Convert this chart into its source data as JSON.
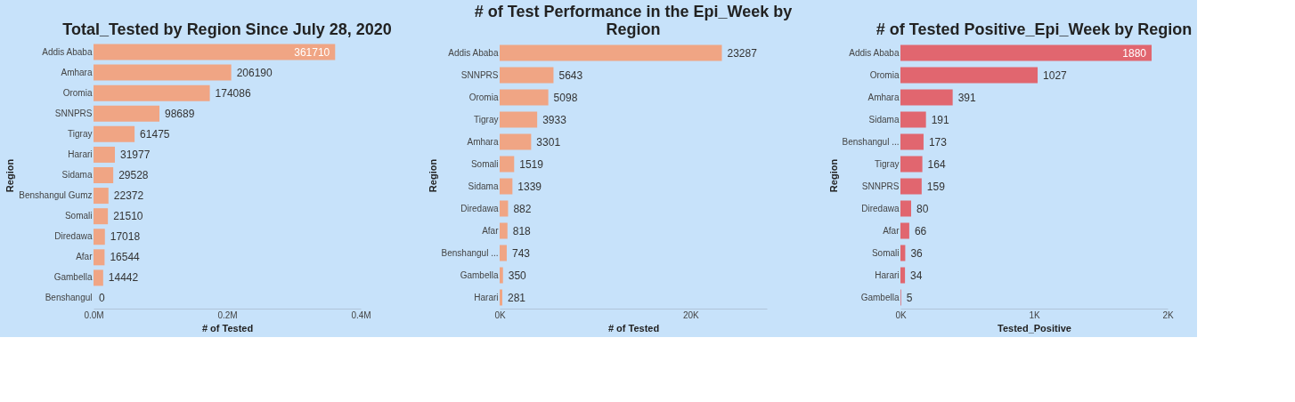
{
  "chart_data": [
    {
      "type": "bar",
      "orientation": "horizontal",
      "title": "Total_Tested by Region Since July 28, 2020",
      "xlabel": "# of Tested",
      "ylabel": "Region",
      "color": "#f0a584",
      "data_labels": true,
      "categories": [
        "Addis Ababa",
        "Amhara",
        "Oromia",
        "SNNPRS",
        "Tigray",
        "Harari",
        "Sidama",
        "Benshangul Gumz",
        "Somali",
        "Diredawa",
        "Afar",
        "Gambella",
        "Benshangul"
      ],
      "values": [
        361710,
        206190,
        174086,
        98689,
        61475,
        31977,
        29528,
        22372,
        21510,
        17018,
        16544,
        14442,
        0
      ],
      "xlim": [
        0,
        400000
      ],
      "xticks": [
        {
          "value": 0,
          "label": "0.0M"
        },
        {
          "value": 200000,
          "label": "0.2M"
        },
        {
          "value": 400000,
          "label": "0.4M"
        }
      ]
    },
    {
      "type": "bar",
      "orientation": "horizontal",
      "title": "# of Test Performance in the Epi_Week by Region",
      "xlabel": "# of Tested",
      "ylabel": "Region",
      "color": "#f0a584",
      "data_labels": true,
      "categories": [
        "Addis Ababa",
        "SNNPRS",
        "Oromia",
        "Tigray",
        "Amhara",
        "Somali",
        "Sidama",
        "Diredawa",
        "Afar",
        "Benshangul ...",
        "Gambella",
        "Harari"
      ],
      "values": [
        23287,
        5643,
        5098,
        3933,
        3301,
        1519,
        1339,
        882,
        818,
        743,
        350,
        281
      ],
      "xlim": [
        0,
        28000
      ],
      "xticks": [
        {
          "value": 0,
          "label": "0K"
        },
        {
          "value": 20000,
          "label": "20K"
        }
      ]
    },
    {
      "type": "bar",
      "orientation": "horizontal",
      "title": "# of Tested Positive_Epi_Week by Region",
      "xlabel": "Tested_Positive",
      "ylabel": "Region",
      "color": "#e1666f",
      "data_labels": true,
      "categories": [
        "Addis Ababa",
        "Oromia",
        "Amhara",
        "Sidama",
        "Benshangul ...",
        "Tigray",
        "SNNPRS",
        "Diredawa",
        "Afar",
        "Somali",
        "Harari",
        "Gambella"
      ],
      "values": [
        1880,
        1027,
        391,
        191,
        173,
        164,
        159,
        80,
        66,
        36,
        34,
        5
      ],
      "xlim": [
        0,
        2000
      ],
      "xticks": [
        {
          "value": 0,
          "label": "0K"
        },
        {
          "value": 1000,
          "label": "1K"
        },
        {
          "value": 2000,
          "label": "2K"
        }
      ]
    }
  ]
}
